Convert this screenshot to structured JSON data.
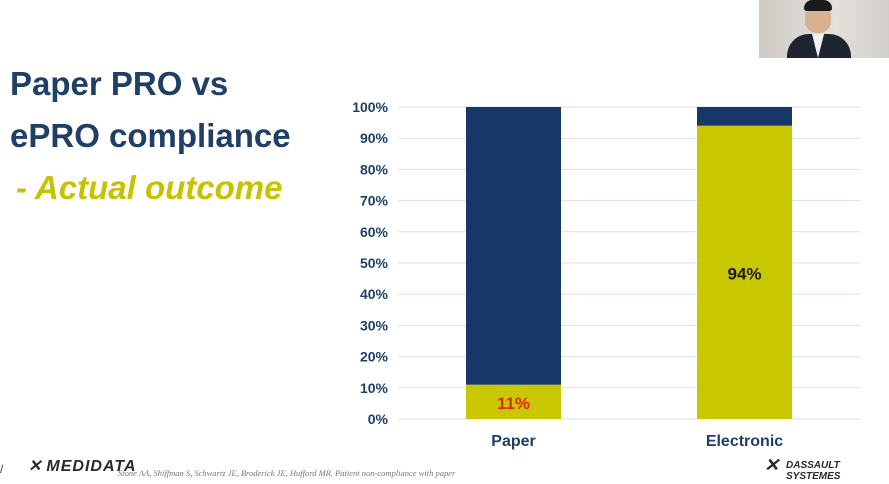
{
  "slide": {
    "title_line1": "Paper PRO vs",
    "title_line2": "ePRO compliance",
    "subtitle": "- Actual outcome"
  },
  "footer": {
    "medidata_logo": "MEDIDATA",
    "citation": "Stone AA, Shiffman S, Schwartz JE, Broderick JE, Hufford MR. Patient non-compliance with paper",
    "dassault_logo_line1": "DASSAULT",
    "dassault_logo_line2": "SYSTEMES"
  },
  "colors": {
    "navy": "#173768",
    "olive": "#c9c700",
    "title": "#1f3f66",
    "label_paper": "#e5251c",
    "label_electronic": "#1a1a1a"
  },
  "chart_data": {
    "type": "bar",
    "stacked": true,
    "categories": [
      "Paper",
      "Electronic"
    ],
    "series": [
      {
        "values": [
          11,
          94
        ],
        "color": "#c9c700"
      },
      {
        "values": [
          89,
          6
        ],
        "color": "#173768"
      }
    ],
    "data_labels": [
      "11%",
      "94%"
    ],
    "y_ticks": [
      "0%",
      "10%",
      "20%",
      "30%",
      "40%",
      "50%",
      "60%",
      "70%",
      "80%",
      "90%",
      "100%"
    ],
    "ylim": [
      0,
      100
    ],
    "grid": true,
    "legend": "none"
  }
}
